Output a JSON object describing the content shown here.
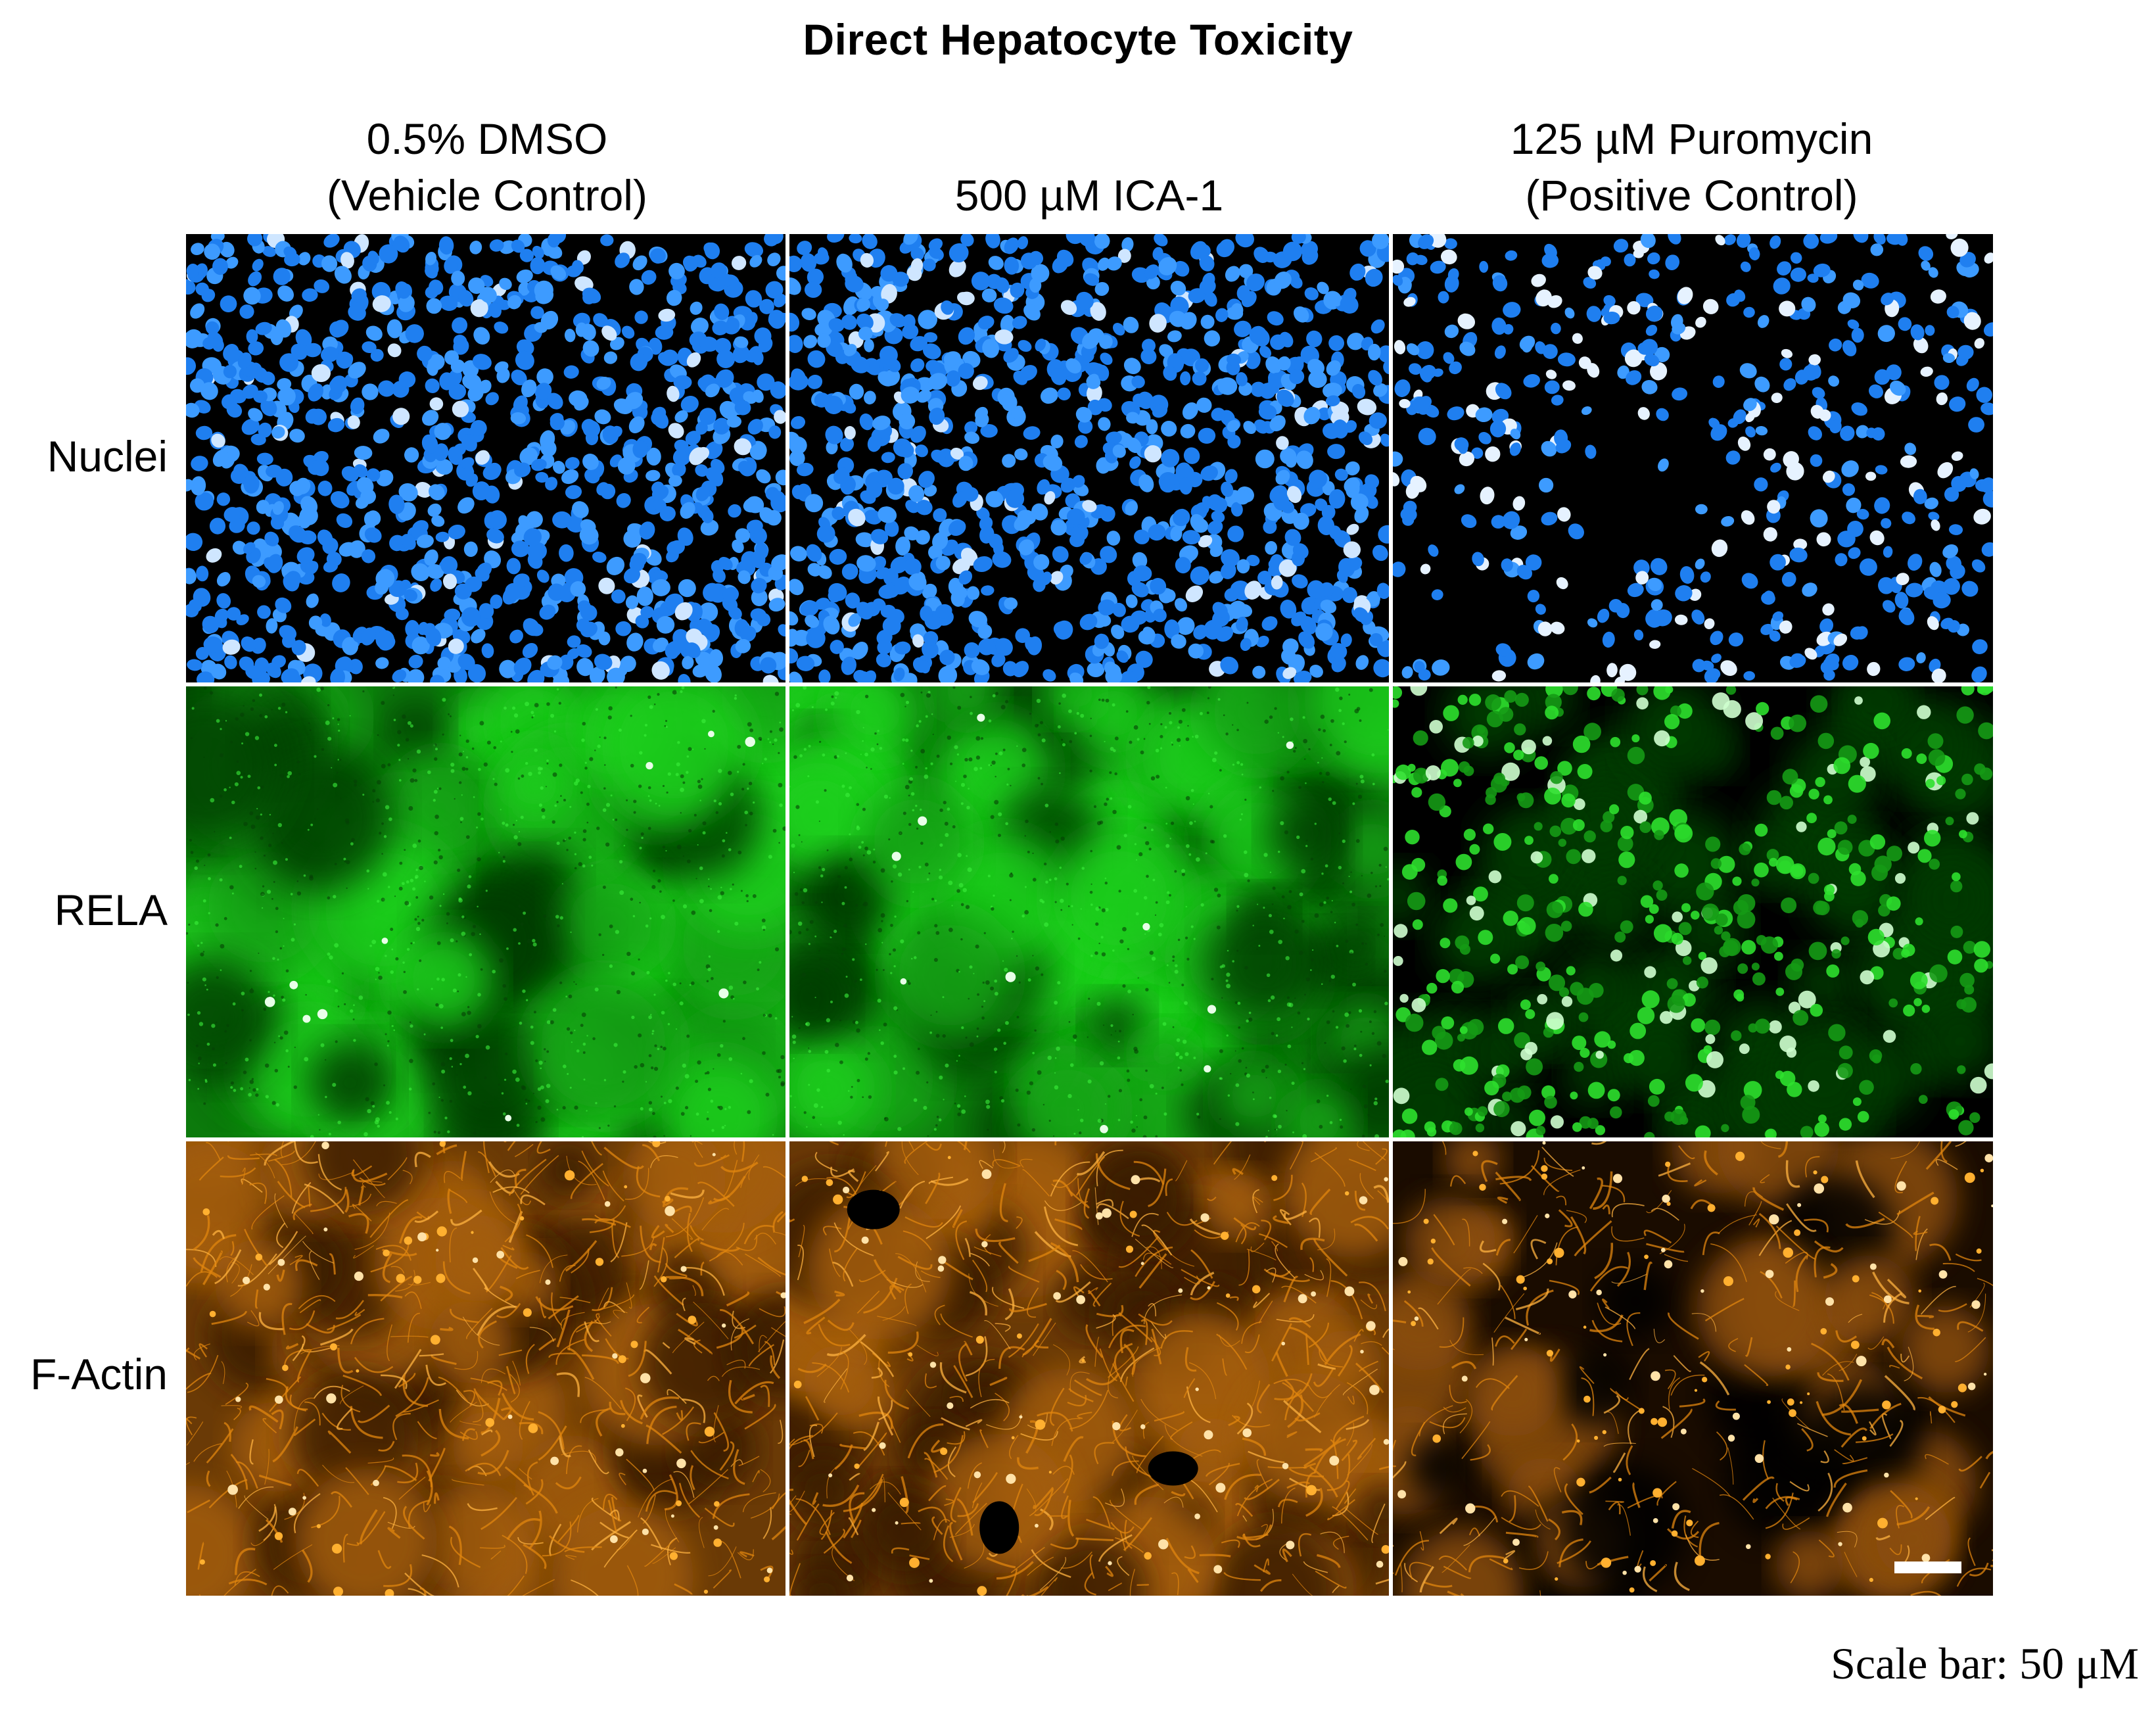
{
  "title": "Direct Hepatocyte Toxicity",
  "columns": [
    {
      "line1": "0.5% DMSO",
      "line2": "(Vehicle Control)"
    },
    {
      "line1": "500 µM ICA-1",
      "line2": ""
    },
    {
      "line1": "125 µM Puromycin",
      "line2": "(Positive Control)"
    }
  ],
  "rows": [
    {
      "label": "Nuclei",
      "stain": "nuclei",
      "color": "#2f8cff"
    },
    {
      "label": "RELA",
      "stain": "rela",
      "color": "#14d214"
    },
    {
      "label": "F-Actin",
      "stain": "factin",
      "color": "#f08a14"
    }
  ],
  "scale_bar_text": "Scale bar: 50 μM",
  "colors": {
    "nuclei": "#2f8cff",
    "rela": "#14d214",
    "factin": "#f08a14",
    "background": "#000000"
  }
}
